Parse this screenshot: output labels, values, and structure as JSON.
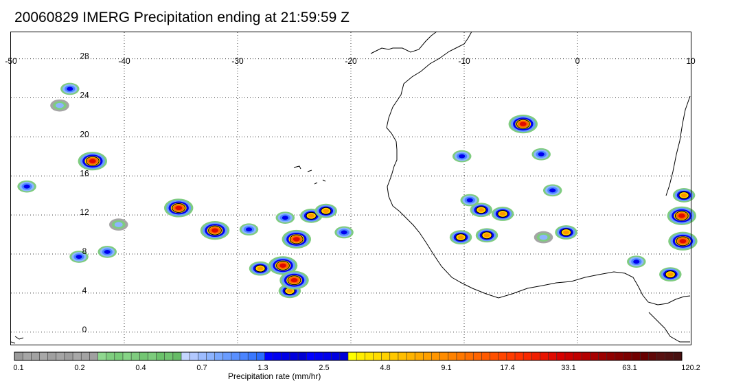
{
  "title": "20060829 IMERG Precipitation ending at 21:59:59 Z",
  "map": {
    "lon_range": [
      -50,
      10
    ],
    "lat_range": [
      -1,
      31
    ],
    "lon_ticks": [
      "-50",
      "-40",
      "-30",
      "-20",
      "-10",
      "0",
      "10"
    ],
    "lat_ticks": [
      "28",
      "24",
      "20",
      "16",
      "12",
      "8",
      "4",
      "0"
    ],
    "gridlines": "dotted",
    "coastline_color": "#000000"
  },
  "colorbar": {
    "title": "Precipitation rate (mm/hr)",
    "labels": [
      "0.1",
      "0.2",
      "0.4",
      "0.7",
      "1.3",
      "2.5",
      "4.8",
      "9.1",
      "17.4",
      "33.1",
      "63.1",
      "120.2"
    ],
    "colors": [
      "#9a9a9a",
      "#a6a6a6",
      "#a2a2a2",
      "#a8a8a8",
      "#a0a0a0",
      "#a5a5a5",
      "#9e9e9e",
      "#a8a8a8",
      "#a3a3a3",
      "#a0a0a0",
      "#8fd88f",
      "#7fce7f",
      "#78cc78",
      "#86d486",
      "#7fcc7f",
      "#73c673",
      "#7ccc7c",
      "#6bc26b",
      "#70c470",
      "#66bb66",
      "#c4d6ff",
      "#b2c8ff",
      "#9dbcff",
      "#8db4ff",
      "#7aa8ff",
      "#6a9cff",
      "#5a90ff",
      "#4a84ff",
      "#3a78ff",
      "#2a6cff",
      "#0000ff",
      "#0000f0",
      "#0000e6",
      "#0000dc",
      "#0000d2",
      "#0000ff",
      "#0000f4",
      "#0000ea",
      "#0000e0",
      "#0000d6",
      "#ffff00",
      "#ffee00",
      "#ffe600",
      "#ffdc00",
      "#ffd200",
      "#ffc800",
      "#ffbe00",
      "#ffb400",
      "#ffaa00",
      "#ffa000",
      "#ff9600",
      "#ff8c00",
      "#ff8200",
      "#ff7800",
      "#ff6e00",
      "#ff6400",
      "#ff5a00",
      "#ff5000",
      "#ff4600",
      "#ff3c00",
      "#ff3200",
      "#f82800",
      "#f01e00",
      "#e81400",
      "#e00a00",
      "#d80000",
      "#cc0000",
      "#c00000",
      "#b40000",
      "#a80000",
      "#9c0000",
      "#900000",
      "#860000",
      "#7c0000",
      "#720000",
      "#680000",
      "#600808",
      "#581010",
      "#501010",
      "#481010"
    ]
  },
  "precip_cells": [
    {
      "lon": -44.8,
      "lat": 25.2,
      "peak": "blue"
    },
    {
      "lon": -45.7,
      "lat": 23.5,
      "peak": "lightblue"
    },
    {
      "lon": -42.8,
      "lat": 17.8,
      "peak": "red"
    },
    {
      "lon": -48.6,
      "lat": 15.2,
      "peak": "blue"
    },
    {
      "lon": -44.0,
      "lat": 8.0,
      "peak": "blue"
    },
    {
      "lon": -41.5,
      "lat": 8.5,
      "peak": "blue"
    },
    {
      "lon": -40.5,
      "lat": 11.3,
      "peak": "lightblue"
    },
    {
      "lon": -35.2,
      "lat": 13.0,
      "peak": "red"
    },
    {
      "lon": -32.0,
      "lat": 10.7,
      "peak": "red"
    },
    {
      "lon": -29.0,
      "lat": 10.8,
      "peak": "blue"
    },
    {
      "lon": -28.0,
      "lat": 6.8,
      "peak": "orange"
    },
    {
      "lon": -25.8,
      "lat": 12.0,
      "peak": "blue"
    },
    {
      "lon": -24.8,
      "lat": 9.8,
      "peak": "red"
    },
    {
      "lon": -23.5,
      "lat": 12.2,
      "peak": "orange"
    },
    {
      "lon": -22.2,
      "lat": 12.7,
      "peak": "orange"
    },
    {
      "lon": -26.0,
      "lat": 7.1,
      "peak": "red"
    },
    {
      "lon": -25.4,
      "lat": 4.5,
      "peak": "orange"
    },
    {
      "lon": -25.0,
      "lat": 5.6,
      "peak": "red"
    },
    {
      "lon": -20.6,
      "lat": 10.5,
      "peak": "blue"
    },
    {
      "lon": -10.2,
      "lat": 18.3,
      "peak": "blue"
    },
    {
      "lon": -9.5,
      "lat": 13.8,
      "peak": "blue"
    },
    {
      "lon": -8.5,
      "lat": 12.8,
      "peak": "orange"
    },
    {
      "lon": -6.6,
      "lat": 12.4,
      "peak": "orange"
    },
    {
      "lon": -8.0,
      "lat": 10.2,
      "peak": "orange"
    },
    {
      "lon": -10.3,
      "lat": 10.0,
      "peak": "orange"
    },
    {
      "lon": -4.8,
      "lat": 21.6,
      "peak": "red"
    },
    {
      "lon": -3.2,
      "lat": 18.5,
      "peak": "blue"
    },
    {
      "lon": -2.2,
      "lat": 14.8,
      "peak": "blue"
    },
    {
      "lon": -1.0,
      "lat": 10.5,
      "peak": "orange"
    },
    {
      "lon": -3.0,
      "lat": 10.0,
      "peak": "lightblue"
    },
    {
      "lon": 5.2,
      "lat": 7.5,
      "peak": "blue"
    },
    {
      "lon": 8.2,
      "lat": 6.2,
      "peak": "orange"
    },
    {
      "lon": 9.2,
      "lat": 12.2,
      "peak": "red"
    },
    {
      "lon": 9.3,
      "lat": 9.6,
      "peak": "red"
    },
    {
      "lon": 9.4,
      "lat": 14.3,
      "peak": "orange"
    }
  ]
}
